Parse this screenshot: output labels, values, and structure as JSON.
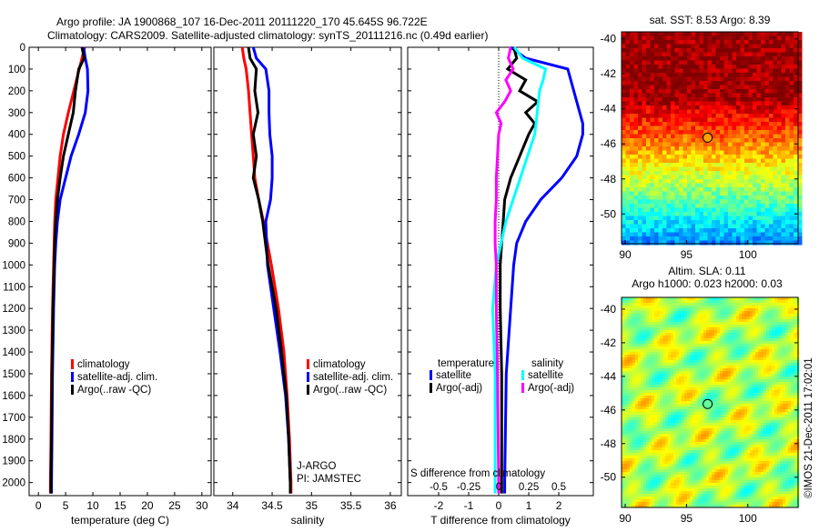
{
  "title_line1": "Argo profile: JA 1900868_107 16-Dec-2011 20111220_170 45.645S 96.722E",
  "title_line2": "Climatology: CARS2009. Satellite-adjusted climatology: synTS_20111216.nc (0.49d earlier)",
  "credit": "©IMOS 21-Dec-2011 17:02:01",
  "colors": {
    "climatology": "#ff0000",
    "satellite": "#0000ff",
    "argo": "#000000",
    "sal_satellite": "#00ffff",
    "sal_argo": "#ff00ff"
  },
  "chart_data": [
    {
      "type": "line",
      "name": "temperature-profile",
      "xlabel": "temperature (deg C)",
      "ylabel": "depth",
      "xlim": [
        -1.7,
        31.7
      ],
      "ylim": [
        2060,
        0
      ],
      "xticks": [
        "0",
        "5",
        "10",
        "15",
        "20",
        "25",
        "30"
      ],
      "yticks": [
        "0",
        "100",
        "200",
        "300",
        "400",
        "500",
        "600",
        "700",
        "800",
        "900",
        "1000",
        "1100",
        "1200",
        "1300",
        "1400",
        "1500",
        "1600",
        "1700",
        "1800",
        "1900",
        "2000"
      ],
      "depth": [
        0,
        50,
        100,
        200,
        300,
        400,
        500,
        600,
        700,
        800,
        900,
        1000,
        1200,
        1500,
        1800,
        2000,
        2050
      ],
      "series": [
        {
          "name": "climatology",
          "color": "#ff0000",
          "values": [
            8.5,
            8.0,
            7.5,
            6.5,
            5.5,
            4.6,
            4.0,
            3.6,
            3.2,
            3.0,
            2.9,
            2.8,
            2.6,
            2.4,
            2.3,
            2.2,
            2.2
          ]
        },
        {
          "name": "satellite-adj. clim.",
          "color": "#0000ff",
          "values": [
            8.3,
            8.6,
            9.0,
            9.1,
            8.6,
            7.4,
            6.0,
            5.0,
            4.0,
            3.5,
            3.2,
            3.0,
            2.8,
            2.6,
            2.5,
            2.4,
            2.4
          ]
        },
        {
          "name": "Argo(..raw -QC)",
          "color": "#000000",
          "values": [
            8.0,
            8.4,
            7.4,
            6.8,
            6.4,
            5.5,
            4.6,
            4.0,
            3.5,
            3.2,
            3.0,
            2.9,
            2.7,
            2.5,
            2.4,
            2.3,
            2.3
          ]
        }
      ],
      "legend": [
        "climatology",
        "satellite-adj. clim.",
        "Argo(..raw -QC)"
      ],
      "legend_position": "lower-middle"
    },
    {
      "type": "line",
      "name": "salinity-profile",
      "xlabel": "salinity",
      "xlim": [
        33.76,
        36.14
      ],
      "ylim": [
        2060,
        0
      ],
      "xticks": [
        "34",
        "34.5",
        "35",
        "35.5",
        "36"
      ],
      "depth": [
        0,
        50,
        100,
        200,
        300,
        400,
        500,
        600,
        700,
        800,
        1000,
        1200,
        1400,
        1600,
        1800,
        2000,
        2050
      ],
      "series": [
        {
          "name": "climatology",
          "color": "#ff0000",
          "values": [
            34.12,
            34.14,
            34.17,
            34.2,
            34.22,
            34.24,
            34.26,
            34.28,
            34.33,
            34.39,
            34.49,
            34.58,
            34.65,
            34.69,
            34.72,
            34.74,
            34.74
          ]
        },
        {
          "name": "satellite-adj. clim.",
          "color": "#0000ff",
          "values": [
            34.26,
            34.3,
            34.42,
            34.46,
            34.46,
            34.47,
            34.5,
            34.5,
            34.48,
            34.42,
            34.44,
            34.52,
            34.6,
            34.67,
            34.71,
            34.73,
            34.73
          ]
        },
        {
          "name": "Argo(..raw -QC)",
          "color": "#000000",
          "values": [
            34.2,
            34.22,
            34.3,
            34.28,
            34.32,
            34.26,
            34.3,
            34.26,
            34.33,
            34.38,
            34.45,
            34.55,
            34.62,
            34.68,
            34.71,
            34.73,
            34.73
          ]
        }
      ],
      "legend": [
        "climatology",
        "satellite-adj. clim.",
        "Argo(..raw -QC)"
      ],
      "annotations": [
        "J-ARGO",
        "PI: JAMSTEC"
      ]
    },
    {
      "type": "line",
      "name": "difference-profile",
      "xlabel": "T difference from climatology",
      "xlabel2": "S difference from climatology",
      "xlim": [
        -3.03,
        3.15
      ],
      "ylim": [
        2060,
        0
      ],
      "xticks": [
        "-2",
        "-1",
        "0",
        "1",
        "2"
      ],
      "xticks2": [
        "-0.5",
        "-0.25",
        "0",
        "0.25",
        "0.5"
      ],
      "s_per_t": 0.25,
      "depth": [
        0,
        50,
        100,
        150,
        200,
        250,
        300,
        350,
        400,
        500,
        600,
        700,
        800,
        900,
        1000,
        1200,
        1500,
        2000,
        2050
      ],
      "series": [
        {
          "name": "temperature satellite",
          "color": "#0000ff",
          "var": "T",
          "values": [
            0.4,
            0.9,
            2.3,
            2.4,
            2.5,
            2.6,
            2.7,
            2.8,
            2.8,
            2.6,
            2.1,
            1.4,
            0.9,
            0.6,
            0.5,
            0.4,
            0.25,
            0.2,
            0.2
          ]
        },
        {
          "name": "temperature Argo(-adj)",
          "color": "#000000",
          "var": "T",
          "values": [
            0.5,
            0.6,
            0.3,
            0.9,
            0.7,
            1.3,
            0.9,
            1.2,
            1.0,
            0.7,
            0.4,
            0.2,
            0.15,
            0.1,
            0.05,
            0.05,
            0.1,
            0.1,
            0.1
          ]
        },
        {
          "name": "salinity satellite",
          "color": "#00ffff",
          "var": "S",
          "values": [
            0.13,
            0.2,
            0.39,
            0.37,
            0.34,
            0.33,
            0.32,
            0.31,
            0.3,
            0.24,
            0.18,
            0.12,
            0.06,
            0.02,
            -0.02,
            -0.05,
            -0.03,
            -0.03,
            -0.03
          ]
        },
        {
          "name": "salinity Argo(-adj)",
          "color": "#ff00ff",
          "var": "S",
          "values": [
            0.1,
            0.08,
            0.12,
            0.06,
            0.1,
            0.05,
            -0.02,
            0.02,
            0.0,
            -0.01,
            -0.02,
            -0.02,
            -0.03,
            -0.03,
            -0.02,
            -0.02,
            -0.01,
            0.0,
            0.0
          ]
        }
      ],
      "legend_headers": [
        "temperature",
        "salinity"
      ],
      "legend": [
        "satellite",
        "Argo(-adj)",
        "satellite",
        "Argo(-adj)"
      ]
    },
    {
      "type": "heatmap",
      "name": "sst-map",
      "title": "sat. SST: 8.53 Argo: 8.39",
      "xlim": [
        89.7,
        104.1
      ],
      "ylim": [
        -51.7,
        -39.6
      ],
      "xticks": [
        "90",
        "95",
        "100"
      ],
      "yticks": [
        "-40",
        "-42",
        "-44",
        "-46",
        "-48",
        "-50"
      ],
      "marker": {
        "lon": 96.722,
        "lat": -45.645
      }
    },
    {
      "type": "heatmap",
      "name": "sla-map",
      "title": "Altim. SLA: 0.11",
      "subtitle": "Argo h1000: 0.023 h2000: 0.03",
      "xlim": [
        89.7,
        104.1
      ],
      "ylim": [
        -51.8,
        -39.3
      ],
      "xticks": [
        "90",
        "95",
        "100"
      ],
      "yticks": [
        "-40",
        "-42",
        "-44",
        "-46",
        "-48",
        "-50"
      ],
      "marker": {
        "lon": 96.722,
        "lat": -45.645
      }
    }
  ]
}
